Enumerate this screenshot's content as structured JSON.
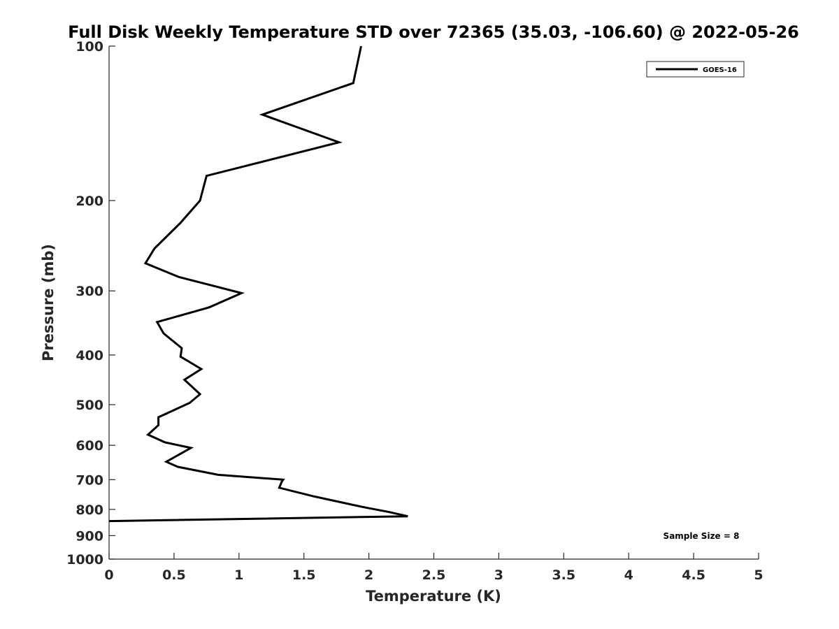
{
  "chart_data": {
    "type": "line",
    "title": "Full Disk Weekly Temperature STD over 72365 (35.03, -106.60) @ 2022-05-26",
    "xlabel": "Temperature (K)",
    "ylabel": "Pressure (mb)",
    "xlim": [
      0,
      5
    ],
    "ylim": [
      100,
      1000
    ],
    "y_scale": "log",
    "y_reversed": true,
    "grid": false,
    "legend_position": "top-right",
    "x_ticks": [
      "0",
      "0.5",
      "1",
      "1.5",
      "2",
      "2.5",
      "3",
      "3.5",
      "4",
      "4.5",
      "5"
    ],
    "y_ticks": [
      "100",
      "200",
      "300",
      "400",
      "500",
      "600",
      "700",
      "800",
      "900",
      "1000"
    ],
    "annotation": "Sample Size = 8",
    "series": [
      {
        "name": "GOES-16",
        "color": "#000000",
        "x": [
          1.94,
          1.88,
          1.18,
          1.77,
          0.75,
          0.7,
          0.55,
          0.35,
          0.28,
          0.54,
          1.02,
          0.77,
          0.37,
          0.42,
          0.56,
          0.55,
          0.71,
          0.58,
          0.7,
          0.62,
          0.38,
          0.38,
          0.3,
          0.43,
          0.63,
          0.44,
          0.53,
          0.84,
          1.34,
          1.33,
          1.31,
          1.58,
          1.95,
          2.16,
          2.3,
          0.0
        ],
        "y": [
          100,
          118,
          136,
          154,
          179,
          200,
          221,
          248,
          265,
          282,
          303,
          323,
          345,
          363,
          388,
          403,
          426,
          447,
          477,
          496,
          529,
          548,
          572,
          592,
          607,
          646,
          661,
          685,
          700,
          706,
          726,
          755,
          791,
          810,
          825,
          843
        ]
      }
    ]
  }
}
